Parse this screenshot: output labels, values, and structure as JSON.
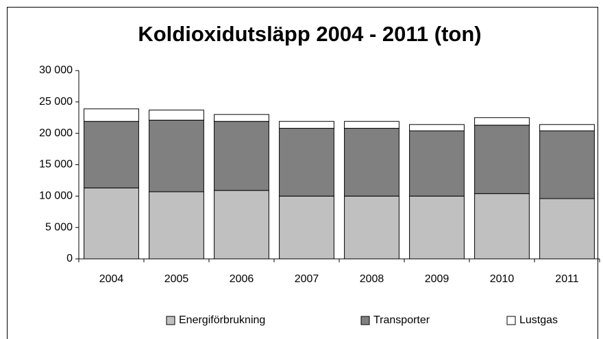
{
  "chart_data": {
    "type": "stacked_bar",
    "title": "Koldioxidutsläpp 2004 - 2011 (ton)",
    "categories": [
      "2004",
      "2005",
      "2006",
      "2007",
      "2008",
      "2009",
      "2010",
      "2011"
    ],
    "series": [
      {
        "name": "Energiförbrukning",
        "color": "#c0c0c0",
        "values": [
          11300,
          10700,
          10900,
          10000,
          10000,
          10000,
          10400,
          9600
        ]
      },
      {
        "name": "Transporter",
        "color": "#808080",
        "values": [
          10600,
          11400,
          11000,
          10800,
          10800,
          10400,
          10900,
          10800
        ]
      },
      {
        "name": "Lustgas",
        "color": "#ffffff",
        "values": [
          2000,
          1600,
          1100,
          1100,
          1100,
          1000,
          1200,
          1000
        ]
      }
    ],
    "ylim": [
      0,
      30000
    ],
    "yticks": [
      0,
      {
        "value": 5000,
        "label": "5 000"
      },
      {
        "value": 10000,
        "label": "10 000"
      },
      {
        "value": 15000,
        "label": "15 000"
      },
      {
        "value": 20000,
        "label": "20 000"
      },
      {
        "value": 25000,
        "label": "25 000"
      },
      {
        "value": 30000,
        "label": "30 000"
      }
    ],
    "legend": "bottom",
    "grid": false
  }
}
